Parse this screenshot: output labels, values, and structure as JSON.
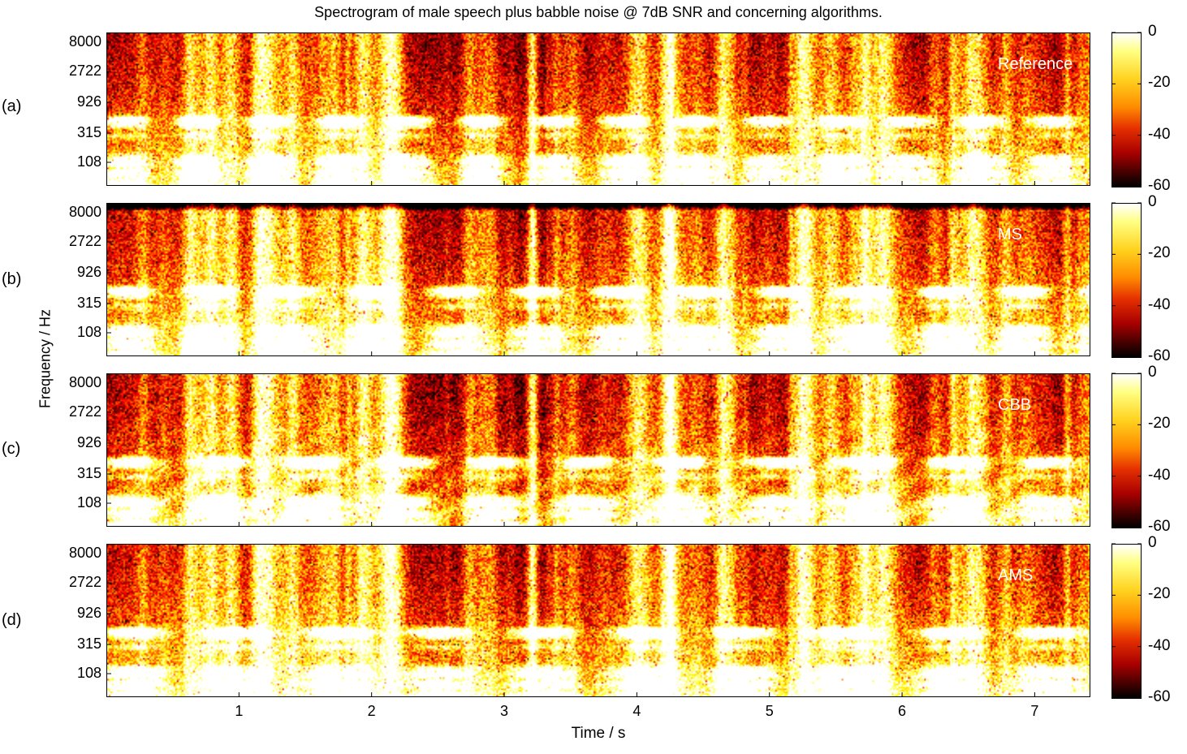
{
  "chart_data": {
    "type": "heatmap",
    "title": "Spectrogram of male speech plus babble noise @ 7dB SNR and concerning algorithms.",
    "xlabel": "Time / s",
    "ylabel": "Frequency / Hz",
    "xlim": [
      0,
      7.42
    ],
    "x_ticks": [
      "1",
      "2",
      "3",
      "4",
      "5",
      "6",
      "7"
    ],
    "y_ticks": [
      "8000",
      "2722",
      "926",
      "315",
      "108"
    ],
    "y_scale": "log",
    "colorbar": {
      "range": [
        -60,
        0
      ],
      "ticks": [
        "0",
        "-20",
        "-40",
        "-60"
      ],
      "colormap": "hot"
    },
    "panels": [
      {
        "label": "(a)",
        "series": "Reference",
        "seed": 11,
        "speech_gain": 1.0,
        "noise_floor": 0.3,
        "top_dark": 0.0,
        "smear": 0.0
      },
      {
        "label": "(b)",
        "series": "MS",
        "seed": 23,
        "speech_gain": 1.1,
        "noise_floor": 0.38,
        "top_dark": 0.9,
        "smear": 0.15
      },
      {
        "label": "(c)",
        "series": "CBB",
        "seed": 37,
        "speech_gain": 1.15,
        "noise_floor": 0.22,
        "top_dark": 0.0,
        "smear": 0.55
      },
      {
        "label": "(d)",
        "series": "AMS",
        "seed": 51,
        "speech_gain": 1.05,
        "noise_floor": 0.42,
        "top_dark": 0.0,
        "smear": 0.1
      }
    ]
  },
  "colors": {
    "background": "#ffffff",
    "axis": "#000000",
    "series_label": "#ffffff"
  }
}
